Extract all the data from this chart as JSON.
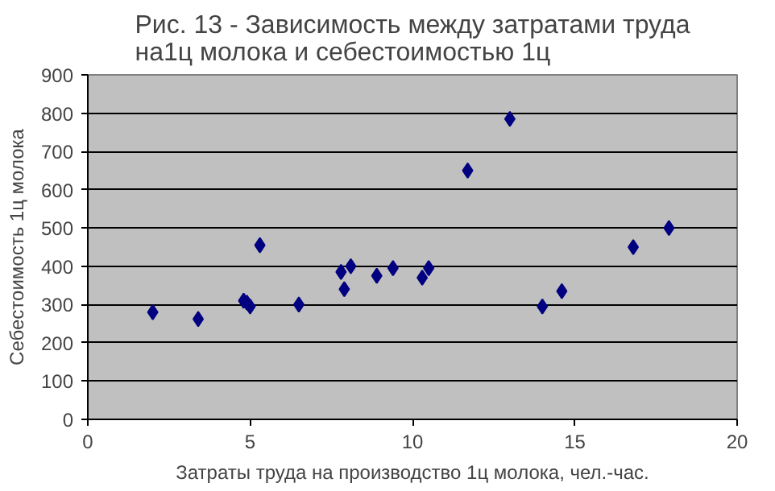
{
  "chart_data": {
    "type": "scatter",
    "title": "Рис. 13 - Зависимость между затратами труда\nна1ц молока и себестоимостью 1ц",
    "xlabel": "Затраты труда на производство 1ц молока, чел.-час.",
    "ylabel": "Себестоимость 1ц молока",
    "x": [
      2,
      3.4,
      4.8,
      4.9,
      5.0,
      5.3,
      6.5,
      7.8,
      7.9,
      8.1,
      8.9,
      9.4,
      10.3,
      10.5,
      11.7,
      13.0,
      14.0,
      14.6,
      16.8,
      17.9
    ],
    "series": [
      {
        "color": "#000080",
        "values": [
          280,
          262,
          310,
          305,
          295,
          455,
          300,
          385,
          340,
          400,
          375,
          395,
          370,
          395,
          650,
          785,
          295,
          335,
          450,
          500
        ]
      }
    ],
    "xlim": [
      0,
      20
    ],
    "xticks": [
      0,
      5,
      10,
      15,
      20
    ],
    "ylim": [
      0,
      900
    ],
    "yticks": [
      0,
      100,
      200,
      300,
      400,
      500,
      600,
      700,
      800,
      900
    ],
    "grid": "y",
    "marker": "diamond"
  }
}
